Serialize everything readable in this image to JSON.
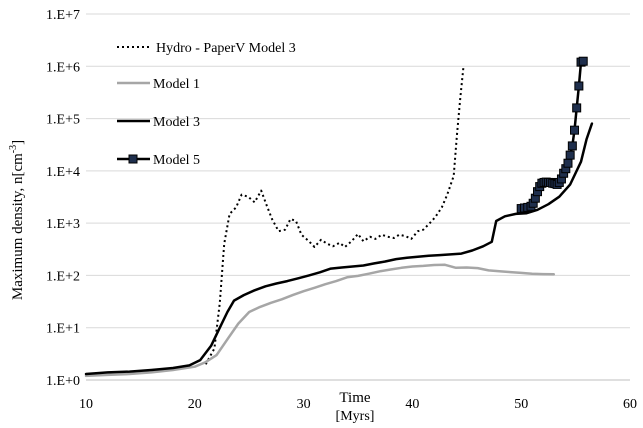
{
  "chart_data": {
    "type": "line",
    "xlabel": "Time",
    "xunit": "[Myrs]",
    "ylabel": "Maximum density, n[cm",
    "ylabel_exp": "-3",
    "ylabel_close": "]",
    "xlim": [
      10,
      60
    ],
    "ylim": [
      1,
      10000000
    ],
    "yscale": "log",
    "xticks": [
      10,
      20,
      30,
      40,
      50,
      60
    ],
    "xtick_labels": [
      "10",
      "20",
      "30",
      "40",
      "50",
      "60"
    ],
    "yticks": [
      1,
      10,
      100,
      1000,
      10000,
      100000,
      1000000,
      10000000
    ],
    "ytick_labels": [
      "1.E+0",
      "1.E+1",
      "1.E+2",
      "1.E+3",
      "1.E+4",
      "1.E+5",
      "1.E+6",
      "1.E+7"
    ],
    "grid": "horizontal",
    "legend": "top-left",
    "series": [
      {
        "name": "Hydro - PaperV Model 3",
        "style": "dotted",
        "color": "#000000",
        "x": [
          21.0,
          21.8,
          22.3,
          22.7,
          23.2,
          23.8,
          24.3,
          24.9,
          25.5,
          26.1,
          26.6,
          27.1,
          27.7,
          28.3,
          28.8,
          29.3,
          29.8,
          30.5,
          31.0,
          31.6,
          32.2,
          32.7,
          33.3,
          33.8,
          34.4,
          35.0,
          35.5,
          36.1,
          36.6,
          37.2,
          37.7,
          38.3,
          38.8,
          39.4,
          39.9,
          40.5,
          41.0,
          41.6,
          42.1,
          42.7,
          43.2,
          43.8,
          44.1,
          44.4,
          44.7
        ],
        "y": [
          2,
          4,
          30,
          400,
          1500,
          2000,
          3500,
          3200,
          2500,
          4200,
          2200,
          1200,
          700,
          750,
          1200,
          1100,
          600,
          450,
          350,
          480,
          400,
          360,
          420,
          350,
          450,
          620,
          450,
          550,
          500,
          600,
          550,
          520,
          600,
          560,
          500,
          700,
          750,
          1000,
          1300,
          2000,
          3500,
          8000,
          50000,
          250000,
          1000000
        ]
      },
      {
        "name": "Model 1",
        "style": "solid",
        "color": "#a6a6a6",
        "x": [
          10,
          12,
          14,
          16,
          18,
          20,
          21,
          22,
          23,
          24,
          25,
          26,
          27,
          28,
          29,
          30,
          31,
          32,
          33,
          34,
          35,
          36,
          37,
          38,
          39,
          40,
          41,
          42,
          43,
          44,
          45,
          46,
          47,
          48,
          49,
          50,
          51,
          52,
          53
        ],
        "y": [
          1.2,
          1.25,
          1.3,
          1.4,
          1.55,
          1.8,
          2.2,
          3,
          6,
          12,
          20,
          25,
          30,
          35,
          42,
          50,
          58,
          68,
          78,
          92,
          98,
          108,
          120,
          130,
          140,
          148,
          152,
          158,
          160,
          140,
          142,
          138,
          125,
          120,
          116,
          112,
          108,
          106,
          105
        ]
      },
      {
        "name": "Model 3",
        "style": "solid",
        "color": "#000000",
        "x": [
          10,
          12,
          14,
          16,
          18,
          19.5,
          20.5,
          21.5,
          22.3,
          23.0,
          23.6,
          24.5,
          25.5,
          26.5,
          27.5,
          28.5,
          29.5,
          30.5,
          31.5,
          32.5,
          33.5,
          34.5,
          35.5,
          36.5,
          37.5,
          38.5,
          39.5,
          40.5,
          41.5,
          42.5,
          43.5,
          44.5,
          45.5,
          46.5,
          47.3,
          47.7,
          48.5,
          49.5,
          50.5,
          51.5,
          52.5,
          53.5,
          54.5,
          55.5,
          56.0,
          56.5
        ],
        "y": [
          1.3,
          1.4,
          1.45,
          1.55,
          1.7,
          1.9,
          2.4,
          4.5,
          10,
          20,
          33,
          42,
          52,
          62,
          70,
          78,
          88,
          100,
          115,
          135,
          142,
          148,
          155,
          170,
          185,
          205,
          218,
          228,
          238,
          245,
          252,
          262,
          300,
          360,
          440,
          1100,
          1350,
          1500,
          1550,
          1800,
          2300,
          3200,
          5500,
          15000,
          40000,
          80000
        ]
      },
      {
        "name": "Model 5",
        "style": "solid-markers",
        "color": "#000000",
        "marker_color": "#1f2f4d",
        "x": [
          50.0,
          50.3,
          50.6,
          50.9,
          51.1,
          51.3,
          51.5,
          51.7,
          51.9,
          52.1,
          52.3,
          52.5,
          52.7,
          52.9,
          53.1,
          53.3,
          53.5,
          53.7,
          53.9,
          54.1,
          54.3,
          54.5,
          54.7,
          54.9,
          55.1,
          55.3,
          55.5,
          55.7
        ],
        "y": [
          1900,
          1950,
          2000,
          2100,
          2400,
          3000,
          4000,
          5000,
          5800,
          6000,
          6100,
          6000,
          6000,
          5800,
          5700,
          5500,
          6000,
          7000,
          9000,
          11000,
          14000,
          20000,
          30000,
          60000,
          160000,
          420000,
          1200000,
          1250000
        ]
      }
    ]
  }
}
